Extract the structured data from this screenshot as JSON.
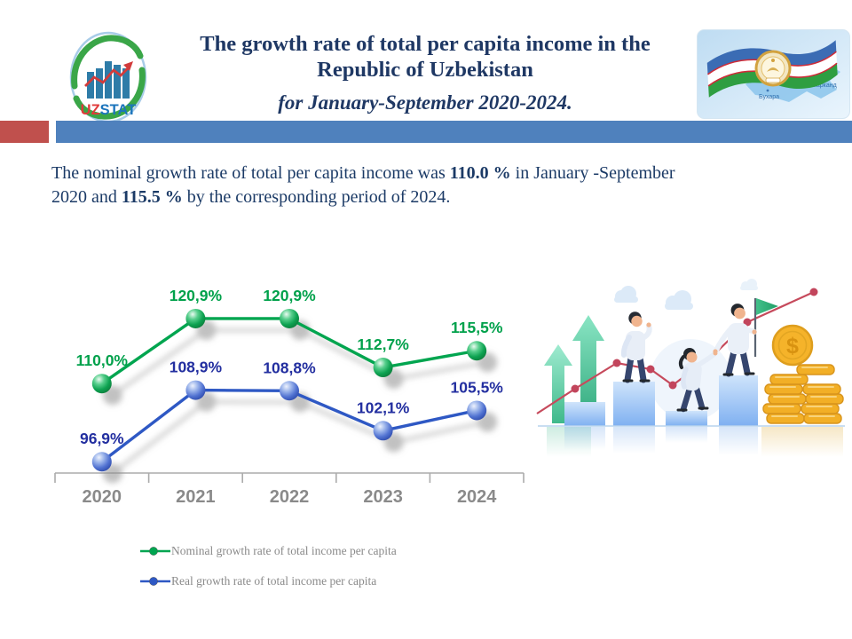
{
  "header": {
    "title_lines": [
      "The growth rate of total per capita income in the",
      "Republic of Uzbekistan"
    ],
    "subtitle": "for January-September 2020-2024.",
    "logo": {
      "prefix": "UZ",
      "suffix": "STAT"
    },
    "flag_map_labels": [
      "Самарканд",
      "Бухара"
    ]
  },
  "divider_colors": {
    "red": "#C0504D",
    "blue": "#4F81BD"
  },
  "paragraph": {
    "segments": [
      {
        "text": "The nominal growth rate of total per capita income was "
      },
      {
        "text": "110.0 %",
        "bold": true
      },
      {
        "text": " in January -September"
      },
      {
        "br": true
      },
      {
        "text": "2020 and "
      },
      {
        "text": "115.5 %",
        "bold": true
      },
      {
        "text": " by the corresponding period of 2024."
      }
    ]
  },
  "chart_data": {
    "type": "line",
    "categories": [
      "2020",
      "2021",
      "2022",
      "2023",
      "2024"
    ],
    "series": [
      {
        "name": "Nominal growth rate of total income per capita",
        "values": [
          110.0,
          120.9,
          120.9,
          112.7,
          115.5
        ],
        "labels": [
          "110,0%",
          "120,9%",
          "120,9%",
          "112,7%",
          "115,5%"
        ],
        "line_color": "#00A550",
        "label_color": "#00A14B",
        "marker_gradient": [
          "#EAFBF1",
          "#57CE8C",
          "#0FA352",
          "#067A3A"
        ]
      },
      {
        "name": "Real growth rate of total  income per capita",
        "values": [
          96.9,
          108.9,
          108.8,
          102.1,
          105.5
        ],
        "labels": [
          "96,9%",
          "108,9%",
          "108,8%",
          "102,1%",
          "105,5%"
        ],
        "line_color": "#2E58C4",
        "label_color": "#232FA0",
        "marker_gradient": [
          "#EDF2FD",
          "#9AB3EA",
          "#5273D2",
          "#2C49A9"
        ]
      }
    ],
    "title": "",
    "xlabel": "",
    "ylabel": "",
    "value_suffix": "%",
    "decimal_separator": ",",
    "grid": false,
    "legend_position": "bottom-left",
    "axis": {
      "line_color": "#ABABAB",
      "x_labels_color": "#8A8A8A"
    }
  },
  "illustration": {
    "coin_symbol": "$"
  }
}
